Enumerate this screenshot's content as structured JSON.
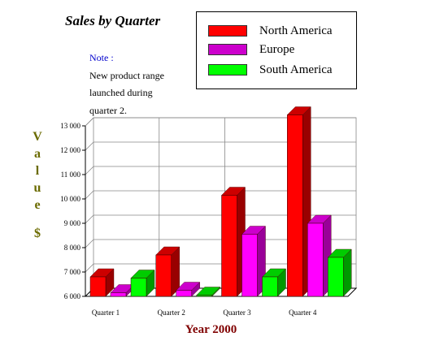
{
  "chart_data": {
    "type": "bar",
    "title": "Sales by Quarter",
    "note": {
      "label": "Note :",
      "lines": [
        "New product range",
        "launched during",
        "quarter 2."
      ]
    },
    "xlabel": "Year 2000",
    "ylabel": "Value $",
    "ylabel_letters": [
      "V",
      "a",
      "l",
      "u",
      "e",
      "",
      "$"
    ],
    "categories": [
      "Quarter 1",
      "Quarter 2",
      "Quarter 3",
      "Quarter 4"
    ],
    "ylim": [
      6000,
      13000
    ],
    "yticks": [
      6000,
      7000,
      8000,
      9000,
      10000,
      11000,
      12000,
      13000
    ],
    "ytick_labels": [
      "6 000",
      "7 000",
      "8 000",
      "9 000",
      "10 000",
      "11 000",
      "12 000",
      "13 000"
    ],
    "grid": true,
    "legend_position": "top-right",
    "series": [
      {
        "name": "North America",
        "values": [
          6800,
          7700,
          10150,
          13450
        ],
        "color": "#ff0000",
        "side": "#990000",
        "top": "#cc0000"
      },
      {
        "name": "Europe",
        "values": [
          6150,
          6250,
          8550,
          9000
        ],
        "color": "#ff00ff",
        "side": "#990099",
        "top": "#cc00cc"
      },
      {
        "name": "South America",
        "values": [
          6750,
          6050,
          6800,
          7600
        ],
        "color": "#00ff00",
        "side": "#009900",
        "top": "#00cc00"
      }
    ]
  }
}
